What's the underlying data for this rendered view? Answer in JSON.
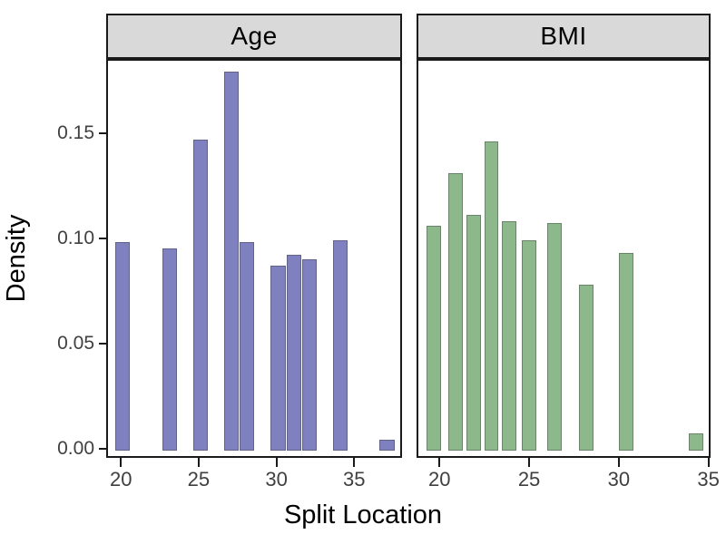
{
  "chart_data": {
    "type": "bar",
    "title": "",
    "xlabel": "Split Location",
    "ylabel": "Density",
    "grid": false,
    "legend": "none",
    "y_ticks": [
      "0.00",
      "0.05",
      "0.10",
      "0.15"
    ],
    "y_range": [
      -0.0043,
      0.1853
    ],
    "facets": [
      {
        "label": "Age",
        "fill_color": "#7E80C0",
        "x_ticks": [
          "20",
          "25",
          "30",
          "35"
        ],
        "x_range": [
          19.05,
          38.08
        ],
        "bar_width_units": 0.95,
        "bars": [
          {
            "x": 20,
            "density": 0.099
          },
          {
            "x": 23,
            "density": 0.096
          },
          {
            "x": 25,
            "density": 0.148
          },
          {
            "x": 27,
            "density": 0.18
          },
          {
            "x": 28,
            "density": 0.099
          },
          {
            "x": 30,
            "density": 0.088
          },
          {
            "x": 31,
            "density": 0.093
          },
          {
            "x": 32,
            "density": 0.091
          },
          {
            "x": 34,
            "density": 0.1
          },
          {
            "x": 37,
            "density": 0.005
          }
        ]
      },
      {
        "label": "BMI",
        "fill_color": "#8CB88C",
        "x_ticks": [
          "20",
          "25",
          "30",
          "35"
        ],
        "x_range": [
          18.72,
          35.12
        ],
        "bar_width_units": 0.8,
        "bars": [
          {
            "x": 19.6,
            "density": 0.107
          },
          {
            "x": 20.8,
            "density": 0.132
          },
          {
            "x": 21.8,
            "density": 0.112
          },
          {
            "x": 22.8,
            "density": 0.147
          },
          {
            "x": 23.8,
            "density": 0.109
          },
          {
            "x": 24.9,
            "density": 0.1
          },
          {
            "x": 26.3,
            "density": 0.108
          },
          {
            "x": 28.1,
            "density": 0.079
          },
          {
            "x": 30.3,
            "density": 0.094
          },
          {
            "x": 34.2,
            "density": 0.008
          }
        ]
      }
    ],
    "colors": {
      "strip_background": "#D9D9D9",
      "panel_border": "#1A1A1A",
      "tick_text": "#404040",
      "title_text": "#000000"
    }
  }
}
